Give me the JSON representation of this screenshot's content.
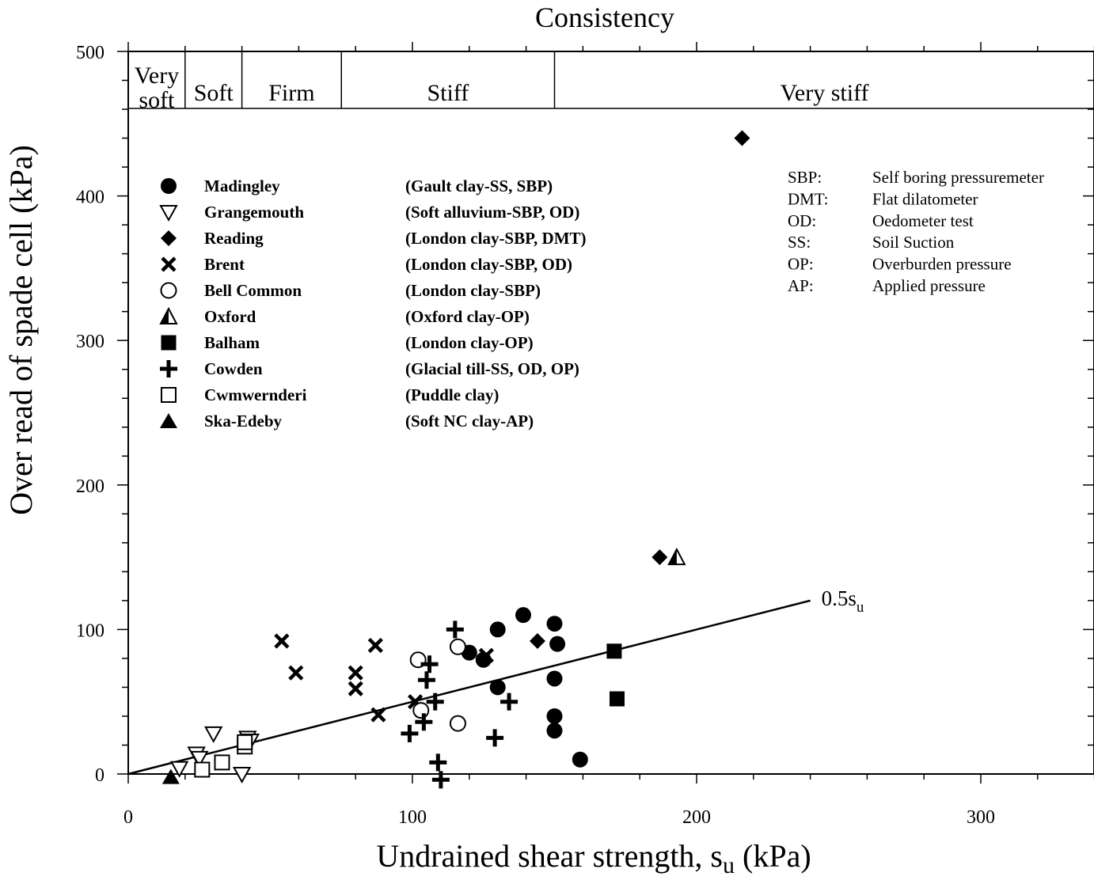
{
  "chart_data": {
    "type": "scatter",
    "title": "Consistency",
    "xlabel": "Undrained shear strength, s",
    "xlabel_sub": "u",
    "xlabel_unit": "(kPa)",
    "ylabel": "Over read of spade cell (kPa)",
    "xlim": [
      0,
      340
    ],
    "ylim": [
      0,
      500
    ],
    "xticks": [
      0,
      100,
      200,
      300
    ],
    "yticks": [
      0,
      100,
      200,
      300,
      400,
      500
    ],
    "consistency_zones": [
      {
        "label_lines": [
          "Very",
          "soft"
        ],
        "from": 0,
        "to": 20
      },
      {
        "label_lines": [
          "Soft"
        ],
        "from": 20,
        "to": 40
      },
      {
        "label_lines": [
          "Firm"
        ],
        "from": 40,
        "to": 75
      },
      {
        "label_lines": [
          "Stiff"
        ],
        "from": 75,
        "to": 150
      },
      {
        "label_lines": [
          "Very stiff"
        ],
        "from": 150,
        "to": 340
      }
    ],
    "reference_line": {
      "label": "0.5s",
      "label_sub": "u",
      "slope": 0.5,
      "x_from": 0,
      "x_to": 240
    },
    "abbreviations": [
      {
        "abbr": "SBP:",
        "meaning": "Self boring pressuremeter"
      },
      {
        "abbr": "DMT:",
        "meaning": "Flat dilatometer"
      },
      {
        "abbr": "OD:",
        "meaning": "Oedometer test"
      },
      {
        "abbr": "SS:",
        "meaning": "Soil Suction"
      },
      {
        "abbr": "OP:",
        "meaning": "Overburden pressure"
      },
      {
        "abbr": "AP:",
        "meaning": "Applied pressure"
      }
    ],
    "series": [
      {
        "name": "Madingley",
        "description": "(Gault clay-SS, SBP)",
        "marker": "circle-filled",
        "points": [
          [
            120,
            84
          ],
          [
            125,
            79
          ],
          [
            130,
            100
          ],
          [
            130,
            60
          ],
          [
            139,
            110
          ],
          [
            150,
            104
          ],
          [
            151,
            90
          ],
          [
            150,
            66
          ],
          [
            150,
            40
          ],
          [
            150,
            30
          ],
          [
            159,
            10
          ]
        ]
      },
      {
        "name": "Grangemouth",
        "description": "(Soft alluvium-SBP, OD)",
        "marker": "triangle-down-open",
        "points": [
          [
            18,
            4
          ],
          [
            24,
            14
          ],
          [
            25,
            11
          ],
          [
            30,
            28
          ],
          [
            40,
            0
          ],
          [
            42,
            25
          ],
          [
            43,
            23
          ]
        ]
      },
      {
        "name": "Reading",
        "description": "(London clay-SBP, DMT)",
        "marker": "diamond-filled",
        "points": [
          [
            216,
            440
          ],
          [
            187,
            150
          ],
          [
            144,
            92
          ]
        ]
      },
      {
        "name": "Brent",
        "description": "(London clay-SBP, OD)",
        "marker": "x",
        "points": [
          [
            54,
            92
          ],
          [
            59,
            70
          ],
          [
            80,
            70
          ],
          [
            80,
            59
          ],
          [
            87,
            89
          ],
          [
            88,
            41
          ],
          [
            101,
            50
          ],
          [
            126,
            82
          ]
        ]
      },
      {
        "name": "Bell Common",
        "description": "(London clay-SBP)",
        "marker": "circle-open",
        "points": [
          [
            102,
            79
          ],
          [
            103,
            44
          ],
          [
            116,
            88
          ],
          [
            116,
            35
          ]
        ]
      },
      {
        "name": "Oxford",
        "description": "(Oxford clay-OP)",
        "marker": "triangle-half",
        "points": [
          [
            193,
            150
          ]
        ]
      },
      {
        "name": "Balham",
        "description": "(London clay-OP)",
        "marker": "square-filled",
        "points": [
          [
            171,
            85
          ],
          [
            172,
            52
          ]
        ]
      },
      {
        "name": "Cowden",
        "description": "(Glacial till-SS, OD, OP)",
        "marker": "plus",
        "points": [
          [
            115,
            100
          ],
          [
            106,
            76
          ],
          [
            105,
            65
          ],
          [
            108,
            50
          ],
          [
            134,
            50
          ],
          [
            104,
            36
          ],
          [
            99,
            28
          ],
          [
            129,
            25
          ],
          [
            109,
            8
          ],
          [
            110,
            -4
          ]
        ]
      },
      {
        "name": "Cwmwernderi",
        "description": "(Puddle clay)",
        "marker": "square-open",
        "points": [
          [
            26,
            3
          ],
          [
            33,
            8
          ],
          [
            41,
            19
          ],
          [
            41,
            22
          ]
        ]
      },
      {
        "name": "Ska-Edeby",
        "description": "(Soft NC clay-AP)",
        "marker": "triangle-up-filled",
        "points": [
          [
            15,
            -2
          ]
        ]
      }
    ]
  }
}
